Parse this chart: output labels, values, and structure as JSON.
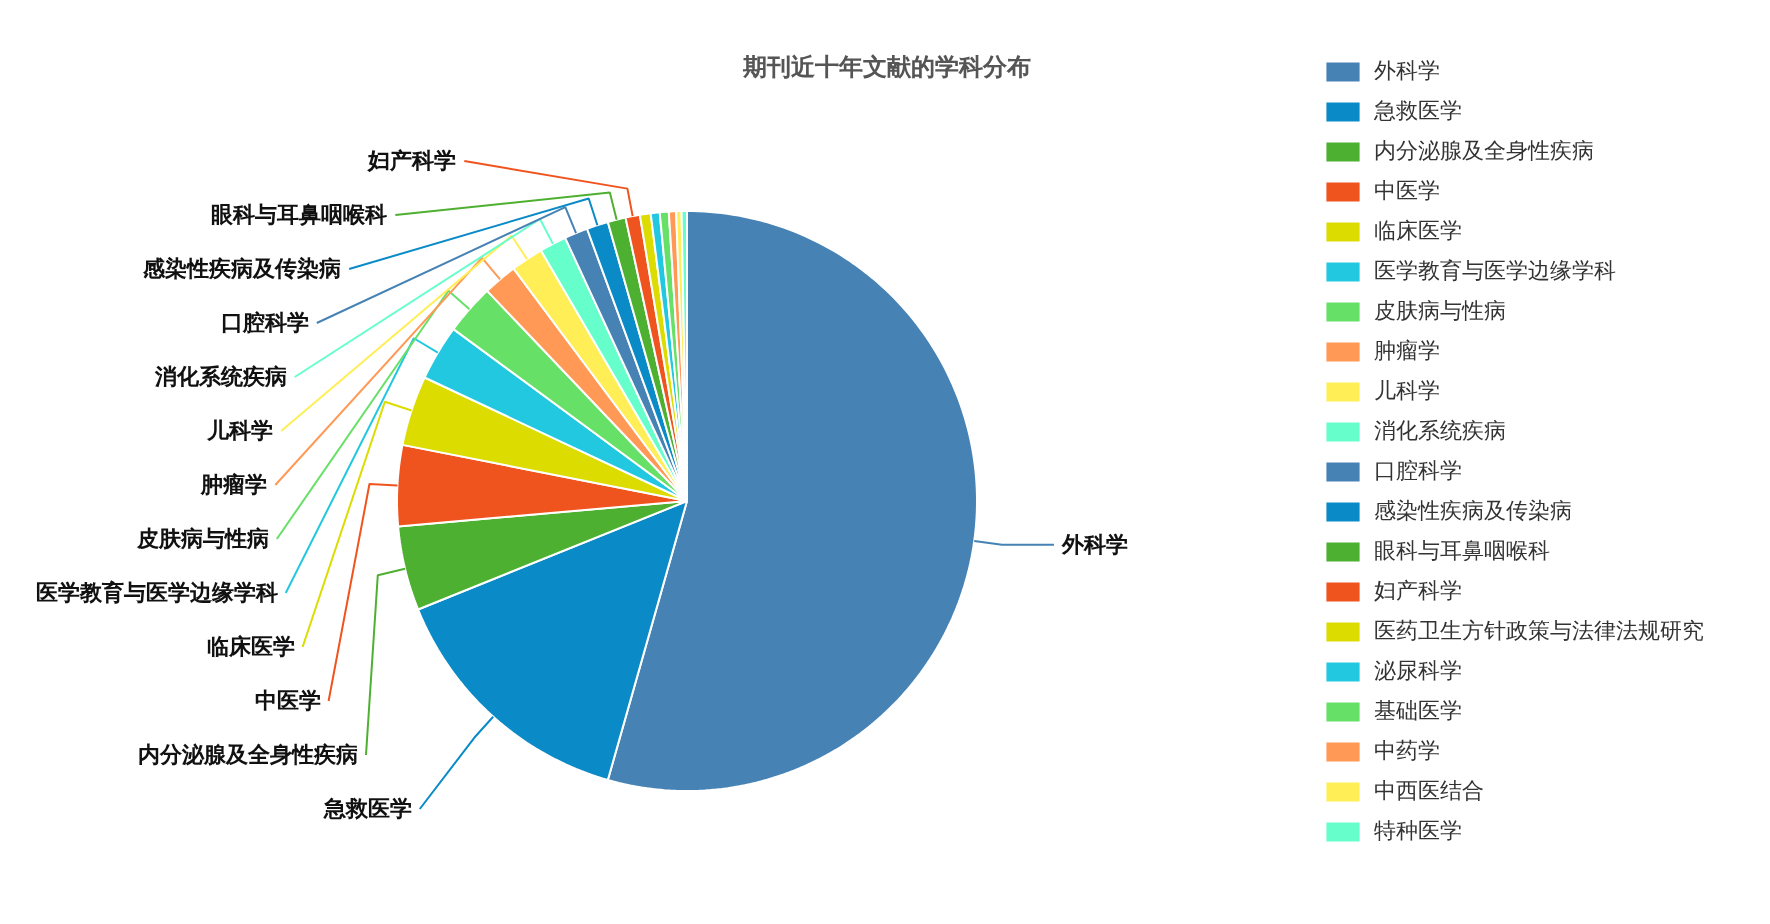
{
  "chart_data": {
    "type": "pie",
    "title": "期刊近十年文献的学科分布",
    "categories": [
      "外科学",
      "急救医学",
      "内分泌腺及全身性疾病",
      "中医学",
      "临床医学",
      "医学教育与医学边缘学科",
      "皮肤病与性病",
      "肿瘤学",
      "儿科学",
      "消化系统疾病",
      "口腔科学",
      "感染性疾病及传染病",
      "眼科与耳鼻咽喉科",
      "妇产科学",
      "医药卫生方针政策与法律法规研究",
      "泌尿科学",
      "基础医学",
      "中药学",
      "中西医结合",
      "特种医学"
    ],
    "values": [
      54.4,
      14.5,
      4.7,
      4.5,
      3.9,
      3.1,
      2.8,
      1.9,
      1.8,
      1.5,
      1.3,
      1.2,
      1.0,
      0.8,
      0.6,
      0.5,
      0.5,
      0.4,
      0.3,
      0.3
    ],
    "colors": [
      "#4682b4",
      "#0a8ac6",
      "#4eb030",
      "#f0541e",
      "#dcdc00",
      "#22c8e0",
      "#66e066",
      "#ff9955",
      "#ffee55",
      "#66ffcc",
      "#4682b4",
      "#0a8ac6",
      "#4eb030",
      "#f0541e",
      "#dcdc00",
      "#22c8e0",
      "#66e066",
      "#ff9955",
      "#ffee55",
      "#66ffcc"
    ],
    "legend": "right"
  }
}
